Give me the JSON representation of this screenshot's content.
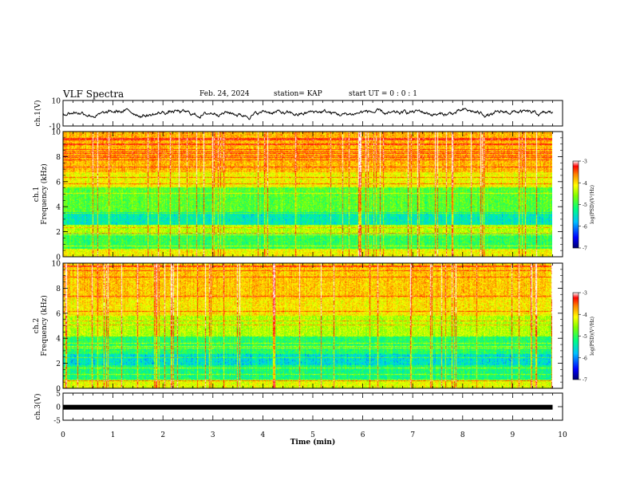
{
  "header": {
    "title": "VLF Spectra",
    "date": "Feb. 24, 2024",
    "station": "station= KAP",
    "start_time": "start UT =  0 : 0  : 1"
  },
  "chart_data": [
    {
      "type": "line",
      "panel": "ch1-waveform",
      "ylabel": "ch.1(V)",
      "ylim": [
        -10,
        10
      ],
      "y_tick_labels": [
        "10",
        "-10"
      ],
      "xlim": [
        0,
        10
      ],
      "approx_range": [
        -5,
        6
      ]
    },
    {
      "type": "heatmap",
      "panel": "ch1-spectrogram",
      "ylabel": "ch.1 Frequency (kHz)",
      "ylim": [
        0,
        10
      ],
      "y_tick_labels": [
        "0",
        "2",
        "4",
        "6",
        "8",
        "10"
      ],
      "xlim": [
        0,
        10
      ],
      "colorbar": {
        "label": "log(PSD)(V²/Hz)",
        "range": [
          -7,
          -3
        ],
        "tick_labels": [
          "-3",
          "-4",
          "-5",
          "-6",
          "-7"
        ]
      }
    },
    {
      "type": "heatmap",
      "panel": "ch2-spectrogram",
      "ylabel": "ch.2 Frequency (kHz)",
      "ylim": [
        0,
        10
      ],
      "y_tick_labels": [
        "0",
        "2",
        "4",
        "6",
        "8",
        "10"
      ],
      "xlim": [
        0,
        10
      ],
      "colorbar": {
        "label": "log(PSD)(V²/Hz)",
        "range": [
          -7,
          -3
        ],
        "tick_labels": [
          "-3",
          "-4",
          "-5",
          "-6",
          "-7"
        ]
      }
    },
    {
      "type": "line",
      "panel": "ch3-waveform",
      "ylabel": "ch.3(V)",
      "ylim": [
        -5,
        5
      ],
      "y_tick_labels": [
        "5",
        "0",
        "-5"
      ],
      "xlim": [
        0,
        10
      ],
      "approx_value": -0.2
    }
  ],
  "x_axis": {
    "label": "Time  (min)",
    "tick_labels": [
      "0",
      "1",
      "2",
      "3",
      "4",
      "5",
      "6",
      "7",
      "8",
      "9",
      "10"
    ],
    "data_end_min": 9.8
  },
  "colors": {
    "colorscale": [
      "#00007f",
      "#0000ff",
      "#00c8ff",
      "#00ff80",
      "#80ff00",
      "#ffff00",
      "#ff8000",
      "#ff0000",
      "#ffffff"
    ]
  }
}
